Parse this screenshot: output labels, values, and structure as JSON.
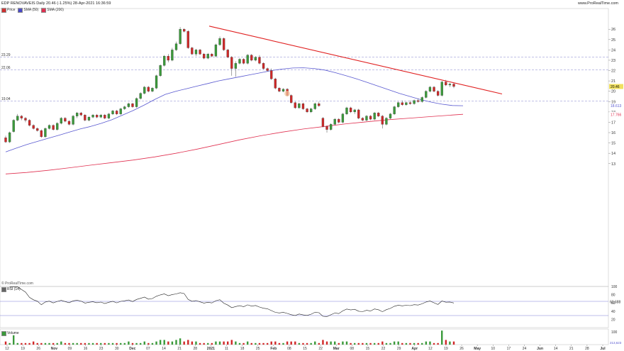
{
  "header": {
    "title": "EDP RENOVAVEIS Daily 20.46 (-1.25%) 28-Apr-2021 16:36:59",
    "site": "www.ProRealTime.com"
  },
  "legend": [
    {
      "label": "Price",
      "color": "#d03030"
    },
    {
      "label": "SMA (50)",
      "color": "#4848c8"
    },
    {
      "label": "SMA (200)",
      "color": "#e03050"
    }
  ],
  "credit": "© ProRealTime.com",
  "indicators": {
    "rsi_label": "RSI (14)",
    "rsi_value_label": "62.688",
    "volume_label": "Volume",
    "volume_value_label": "213,623"
  },
  "colors": {
    "up": "#3a9a3a",
    "down": "#d02828",
    "sma50": "#5858d0",
    "sma200": "#e03050",
    "trendline": "#e02020",
    "dashed": "#9a9ad8",
    "price_tag_bg": "#f0e060"
  },
  "chart_data": {
    "type": "candlestick",
    "price_axis": {
      "min": 13,
      "max": 26.5,
      "ticks": [
        13,
        14,
        15,
        16,
        17,
        18,
        19,
        20,
        21,
        22,
        23,
        24,
        25,
        26
      ]
    },
    "horizontal_levels": [
      {
        "value": 23.29,
        "label": "23.29"
      },
      {
        "value": 22.06,
        "label": "22.06"
      },
      {
        "value": 19.04,
        "label": "19.04"
      }
    ],
    "last_price": {
      "value": 20.46,
      "label": "20.46"
    },
    "sma50_tag": {
      "value": 18.613,
      "label": "18.613"
    },
    "sma200_tag": {
      "value": 17.766,
      "label": "17.766"
    },
    "x_tick_labels": [
      "12",
      "19",
      "26",
      "Nov",
      "09",
      "16",
      "23",
      "30",
      "Dec",
      "07",
      "14",
      "21",
      "28",
      "2021",
      "11",
      "18",
      "25",
      "Feb",
      "08",
      "15",
      "22",
      "Mar",
      "08",
      "15",
      "22",
      "29",
      "Apr",
      "12",
      "19",
      "26",
      "May",
      "10",
      "17",
      "24",
      "Jun",
      "14",
      "21",
      "28",
      "Jul"
    ],
    "candles": [
      [
        15.5,
        15.7,
        15.0,
        15.1
      ],
      [
        15.1,
        16.1,
        15.0,
        16.0
      ],
      [
        16.1,
        17.3,
        16.0,
        17.2
      ],
      [
        17.2,
        17.8,
        17.1,
        17.6
      ],
      [
        17.6,
        17.7,
        17.2,
        17.4
      ],
      [
        17.4,
        17.5,
        17.0,
        17.2
      ],
      [
        17.2,
        17.3,
        16.6,
        16.7
      ],
      [
        16.7,
        16.8,
        16.3,
        16.4
      ],
      [
        16.4,
        16.5,
        16.1,
        16.2
      ],
      [
        16.2,
        16.3,
        15.5,
        15.6
      ],
      [
        15.6,
        16.5,
        15.5,
        16.4
      ],
      [
        16.4,
        16.8,
        16.3,
        16.7
      ],
      [
        16.7,
        16.8,
        16.2,
        16.3
      ],
      [
        16.3,
        17.0,
        16.2,
        16.9
      ],
      [
        16.9,
        17.5,
        16.8,
        17.4
      ],
      [
        17.4,
        17.5,
        17.0,
        17.1
      ],
      [
        17.1,
        17.2,
        16.7,
        16.8
      ],
      [
        16.8,
        17.7,
        16.7,
        17.6
      ],
      [
        17.6,
        18.0,
        17.4,
        17.9
      ],
      [
        17.9,
        18.0,
        17.6,
        17.7
      ],
      [
        17.7,
        17.8,
        17.1,
        17.2
      ],
      [
        17.2,
        17.6,
        17.1,
        17.5
      ],
      [
        17.5,
        17.8,
        17.4,
        17.7
      ],
      [
        17.7,
        17.8,
        17.4,
        17.5
      ],
      [
        17.5,
        17.8,
        17.4,
        17.7
      ],
      [
        17.7,
        17.8,
        17.3,
        17.4
      ],
      [
        17.4,
        17.9,
        17.3,
        17.8
      ],
      [
        17.8,
        18.2,
        17.7,
        18.1
      ],
      [
        18.1,
        18.2,
        17.7,
        17.8
      ],
      [
        17.8,
        18.4,
        17.7,
        18.3
      ],
      [
        18.3,
        18.6,
        18.2,
        18.5
      ],
      [
        18.5,
        18.9,
        18.4,
        18.8
      ],
      [
        18.8,
        18.9,
        18.4,
        18.5
      ],
      [
        18.5,
        19.4,
        18.4,
        19.3
      ],
      [
        19.3,
        19.9,
        19.2,
        19.8
      ],
      [
        19.8,
        20.5,
        19.7,
        20.4
      ],
      [
        20.4,
        20.5,
        19.9,
        20.0
      ],
      [
        20.0,
        20.4,
        19.9,
        20.3
      ],
      [
        20.3,
        21.6,
        20.2,
        21.5
      ],
      [
        21.5,
        22.6,
        21.4,
        22.5
      ],
      [
        22.5,
        23.5,
        22.4,
        23.4
      ],
      [
        23.4,
        23.6,
        22.8,
        23.0
      ],
      [
        23.0,
        24.2,
        22.9,
        24.0
      ],
      [
        24.0,
        24.8,
        23.9,
        24.6
      ],
      [
        24.6,
        26.2,
        24.5,
        26.0
      ],
      [
        26.0,
        26.1,
        25.7,
        25.8
      ],
      [
        25.8,
        25.9,
        24.1,
        24.2
      ],
      [
        24.2,
        24.3,
        23.5,
        23.6
      ],
      [
        23.6,
        24.1,
        23.4,
        24.0
      ],
      [
        24.0,
        24.1,
        23.5,
        23.6
      ],
      [
        23.6,
        23.7,
        23.1,
        23.2
      ],
      [
        23.2,
        23.7,
        23.1,
        23.6
      ],
      [
        23.6,
        23.7,
        23.3,
        23.4
      ],
      [
        23.4,
        24.6,
        23.3,
        24.5
      ],
      [
        24.5,
        25.3,
        24.4,
        25.1
      ],
      [
        25.1,
        25.2,
        23.9,
        24.0
      ],
      [
        24.0,
        24.1,
        23.2,
        23.3
      ],
      [
        23.3,
        23.4,
        21.5,
        22.2
      ],
      [
        22.2,
        22.9,
        21.4,
        22.7
      ],
      [
        22.7,
        23.2,
        22.6,
        23.1
      ],
      [
        23.1,
        23.2,
        22.6,
        22.7
      ],
      [
        22.7,
        23.6,
        22.6,
        23.5
      ],
      [
        23.5,
        23.6,
        22.9,
        23.0
      ],
      [
        23.0,
        23.4,
        22.9,
        23.3
      ],
      [
        23.3,
        23.5,
        22.6,
        22.7
      ],
      [
        22.7,
        22.8,
        22.1,
        22.2
      ],
      [
        22.2,
        22.3,
        21.9,
        22.0
      ],
      [
        22.0,
        22.2,
        21.1,
        21.2
      ],
      [
        21.2,
        21.3,
        20.2,
        20.3
      ],
      [
        20.3,
        20.4,
        19.9,
        20.0
      ],
      [
        20.0,
        20.3,
        19.9,
        20.2
      ],
      [
        20.2,
        20.3,
        19.5,
        19.6
      ],
      [
        19.6,
        19.7,
        18.8,
        18.9
      ],
      [
        18.9,
        19.0,
        18.3,
        18.4
      ],
      [
        18.4,
        18.9,
        18.3,
        18.8
      ],
      [
        18.8,
        18.9,
        18.2,
        18.3
      ],
      [
        18.3,
        18.4,
        17.9,
        18.0
      ],
      [
        18.0,
        18.4,
        17.9,
        18.3
      ],
      [
        18.3,
        18.9,
        18.2,
        18.8
      ],
      [
        18.8,
        19.0,
        18.5,
        18.6
      ],
      [
        17.4,
        17.5,
        16.5,
        16.6
      ],
      [
        16.6,
        16.7,
        16.0,
        16.3
      ],
      [
        16.3,
        16.9,
        16.2,
        16.8
      ],
      [
        16.8,
        17.4,
        16.7,
        17.3
      ],
      [
        17.3,
        17.4,
        16.9,
        17.0
      ],
      [
        17.0,
        17.9,
        16.9,
        17.8
      ],
      [
        17.8,
        18.5,
        17.7,
        18.4
      ],
      [
        18.4,
        18.5,
        17.9,
        18.0
      ],
      [
        18.0,
        18.3,
        17.8,
        18.2
      ],
      [
        18.2,
        18.3,
        17.3,
        17.4
      ],
      [
        17.4,
        17.5,
        17.1,
        17.2
      ],
      [
        17.2,
        17.7,
        17.1,
        17.6
      ],
      [
        17.6,
        17.7,
        17.2,
        17.3
      ],
      [
        17.3,
        18.0,
        17.2,
        17.9
      ],
      [
        17.9,
        18.0,
        17.5,
        17.6
      ],
      [
        17.6,
        17.7,
        16.4,
        16.8
      ],
      [
        16.8,
        17.5,
        16.7,
        17.4
      ],
      [
        17.4,
        17.9,
        17.3,
        17.8
      ],
      [
        17.8,
        18.6,
        17.7,
        18.5
      ],
      [
        18.5,
        19.0,
        18.4,
        18.9
      ],
      [
        18.9,
        19.1,
        18.6,
        18.7
      ],
      [
        18.7,
        19.0,
        18.6,
        18.9
      ],
      [
        18.9,
        19.1,
        18.7,
        18.8
      ],
      [
        18.8,
        19.2,
        18.7,
        19.1
      ],
      [
        19.1,
        19.3,
        18.9,
        19.0
      ],
      [
        19.0,
        19.5,
        18.9,
        19.4
      ],
      [
        19.4,
        20.1,
        19.3,
        20.0
      ],
      [
        20.0,
        20.5,
        19.9,
        20.4
      ],
      [
        20.4,
        20.5,
        19.9,
        20.0
      ],
      [
        20.0,
        20.1,
        19.5,
        19.6
      ],
      [
        19.6,
        21.0,
        19.5,
        20.9
      ],
      [
        20.9,
        21.1,
        20.5,
        20.6
      ],
      [
        20.6,
        20.8,
        20.4,
        20.7
      ],
      [
        20.7,
        20.8,
        20.3,
        20.46
      ]
    ],
    "sma50": [
      [
        0,
        14.13
      ],
      [
        10,
        14.5
      ],
      [
        20,
        14.85
      ],
      [
        30,
        15.15
      ],
      [
        40,
        15.45
      ],
      [
        50,
        15.75
      ],
      [
        60,
        16.05
      ],
      [
        70,
        16.35
      ],
      [
        80,
        16.6
      ],
      [
        90,
        16.9
      ],
      [
        100,
        17.25
      ],
      [
        110,
        17.7
      ],
      [
        120,
        18.15
      ],
      [
        130,
        18.65
      ],
      [
        140,
        19.2
      ],
      [
        150,
        19.7
      ],
      [
        160,
        20.0
      ],
      [
        170,
        20.25
      ],
      [
        180,
        20.5
      ],
      [
        190,
        20.75
      ],
      [
        200,
        21.0
      ],
      [
        210,
        21.2
      ],
      [
        220,
        21.4
      ],
      [
        230,
        21.6
      ],
      [
        240,
        21.8
      ],
      [
        250,
        22.0
      ],
      [
        260,
        22.15
      ],
      [
        270,
        22.25
      ],
      [
        280,
        22.27
      ],
      [
        290,
        22.2
      ],
      [
        300,
        22.05
      ],
      [
        310,
        21.8
      ],
      [
        320,
        21.5
      ],
      [
        330,
        21.2
      ],
      [
        340,
        20.85
      ],
      [
        350,
        20.5
      ],
      [
        360,
        20.15
      ],
      [
        370,
        19.8
      ],
      [
        380,
        19.5
      ],
      [
        390,
        19.2
      ],
      [
        400,
        18.95
      ],
      [
        410,
        18.75
      ],
      [
        420,
        18.62
      ],
      [
        430,
        18.6
      ]
    ],
    "sma200": [
      [
        0,
        12.0
      ],
      [
        20,
        12.15
      ],
      [
        40,
        12.35
      ],
      [
        60,
        12.6
      ],
      [
        80,
        12.85
      ],
      [
        100,
        13.1
      ],
      [
        120,
        13.35
      ],
      [
        140,
        13.65
      ],
      [
        160,
        14.0
      ],
      [
        180,
        14.4
      ],
      [
        200,
        14.85
      ],
      [
        220,
        15.3
      ],
      [
        240,
        15.7
      ],
      [
        260,
        16.05
      ],
      [
        280,
        16.35
      ],
      [
        300,
        16.6
      ],
      [
        320,
        16.85
      ],
      [
        340,
        17.05
      ],
      [
        360,
        17.25
      ],
      [
        380,
        17.4
      ],
      [
        400,
        17.55
      ],
      [
        420,
        17.7
      ],
      [
        430,
        17.77
      ]
    ],
    "trendline": [
      [
        295,
        26.3
      ],
      [
        708,
        19.74
      ]
    ],
    "rsi": {
      "min": 0,
      "max": 100,
      "ticks": [
        20,
        40,
        60,
        80,
        100
      ],
      "overbought": 70,
      "oversold": 30
    },
    "volume": {
      "ticks": [
        "100"
      ]
    }
  }
}
